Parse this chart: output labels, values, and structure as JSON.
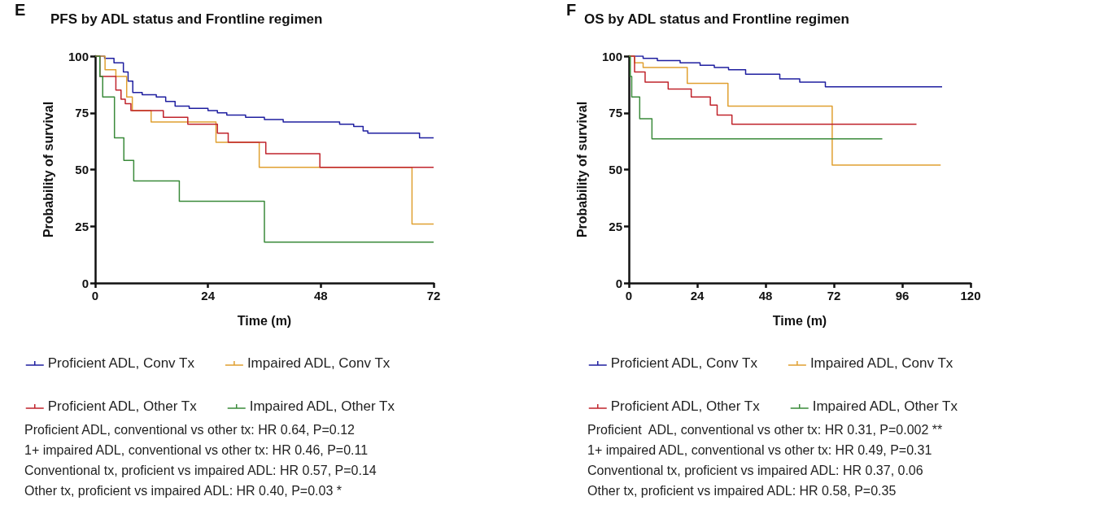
{
  "chart_data": [
    {
      "type": "step",
      "title": "PFS by ADL status and Frontline regimen",
      "xlabel": "Time (m)",
      "ylabel": "Probability of survival",
      "xlim": [
        0,
        72
      ],
      "xticks": [
        0,
        24,
        48,
        72
      ],
      "ylim": [
        0,
        100
      ],
      "yticks": [
        0,
        25,
        50,
        75,
        100
      ],
      "grid": false,
      "legend": "bottom",
      "annotations": [
        "E",
        "Proficient ADL, conventional vs other tx: HR 0.64, P=0.12",
        "1+ impaired ADL, conventional vs other tx: HR 0.46, P=0.11",
        "Conventional tx, proficient vs impaired ADL: HR 0.57, P=0.14",
        "Other tx, proficient vs impaired ADL: HR 0.40, P=0.03 *"
      ],
      "series": [
        {
          "name": "Proficient ADL, Conv Tx",
          "color": "#1f1fa0",
          "x": [
            0,
            2,
            4,
            6,
            7,
            8,
            10,
            13,
            15,
            17,
            20,
            24,
            26,
            28,
            32,
            36,
            40,
            52,
            55,
            57,
            58,
            69,
            72
          ],
          "values": [
            100,
            99,
            97,
            93,
            89,
            84,
            83,
            82,
            80,
            78,
            77,
            76,
            75,
            74,
            73,
            72,
            71,
            70,
            69,
            67,
            66,
            64,
            64
          ]
        },
        {
          "name": "Impaired ADL, Conv Tx",
          "color": "#e0a030",
          "x": [
            0,
            2.1,
            4.4,
            6.7,
            7.9,
            11.9,
            25.7,
            34.9,
            67.4,
            72
          ],
          "values": [
            100,
            94,
            91,
            82,
            76,
            71,
            62,
            51,
            26,
            26
          ]
        },
        {
          "name": "Proficient ADL, Other Tx",
          "color": "#c0242c",
          "x": [
            0,
            1,
            4.4,
            5.5,
            6.4,
            7.6,
            14.5,
            19.7,
            26,
            28.3,
            36.3,
            47.8,
            72
          ],
          "values": [
            100,
            91,
            85,
            81,
            79,
            76,
            73,
            70,
            66,
            62,
            57,
            51,
            51
          ]
        },
        {
          "name": "Impaired ADL, Other Tx",
          "color": "#3a8a3a",
          "x": [
            0,
            1,
            1.6,
            4.1,
            6.1,
            8.2,
            17.9,
            36,
            72
          ],
          "values": [
            100,
            91,
            82,
            64,
            54,
            45,
            36,
            18,
            18
          ]
        }
      ]
    },
    {
      "type": "step",
      "title": "OS by ADL status and Frontline regimen",
      "xlabel": "Time (m)",
      "ylabel": "Probability of survival",
      "xlim": [
        0,
        120
      ],
      "xticks": [
        0,
        24,
        48,
        72,
        96,
        120
      ],
      "ylim": [
        0,
        100
      ],
      "yticks": [
        0,
        25,
        50,
        75,
        100
      ],
      "grid": false,
      "legend": "bottom",
      "annotations": [
        "F",
        "Proficient  ADL, conventional vs other tx: HR 0.31, P=0.002 **",
        "1+ impaired ADL, conventional vs other tx: HR 0.49, P=0.31",
        "Conventional tx, proficient vs impaired ADL: HR 0.37, 0.06",
        "Other tx, proficient vs impaired ADL: HR 0.58, P=0.35"
      ],
      "series": [
        {
          "name": "Proficient ADL, Conv Tx",
          "color": "#1f1fa0",
          "x": [
            0,
            5,
            10,
            18,
            25,
            30,
            35,
            41,
            53,
            60,
            69,
            110
          ],
          "values": [
            100,
            99,
            98,
            97,
            96,
            95,
            94,
            92,
            90,
            88.5,
            86.5,
            86.5
          ]
        },
        {
          "name": "Impaired ADL, Conv Tx",
          "color": "#e0a030",
          "x": [
            0,
            2,
            5,
            20.5,
            34.8,
            71.4,
            109.5
          ],
          "values": [
            100,
            97,
            95,
            88,
            78,
            52,
            52
          ]
        },
        {
          "name": "Proficient ADL, Other Tx",
          "color": "#c0242c",
          "x": [
            0,
            2,
            5.7,
            13.8,
            21.9,
            28.6,
            31,
            36.2,
            101
          ],
          "values": [
            100,
            93,
            88.5,
            85.5,
            82,
            78.4,
            74,
            70,
            70
          ]
        },
        {
          "name": "Impaired ADL, Other Tx",
          "color": "#3a8a3a",
          "x": [
            0,
            0.5,
            1,
            3.8,
            8.1,
            89
          ],
          "values": [
            100,
            91,
            82,
            72.4,
            63.5,
            63.5
          ]
        }
      ]
    }
  ]
}
